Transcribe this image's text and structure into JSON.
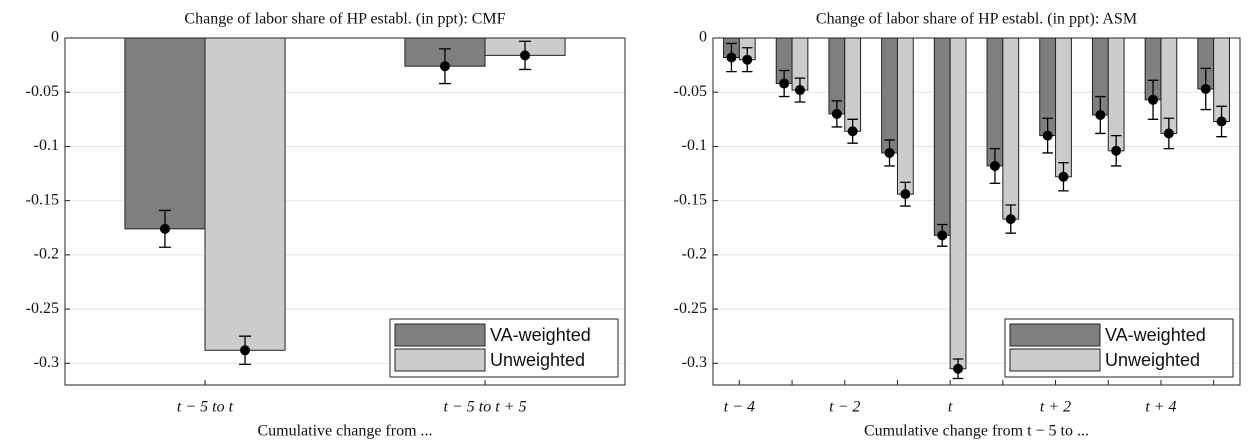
{
  "chart_data": [
    {
      "type": "bar",
      "title": "Change of labor share of HP establ. (in ppt): CMF",
      "x_label": "Cumulative change from ...",
      "categories": [
        "t − 5  to  t",
        "t − 5  to  t + 5"
      ],
      "series": [
        {
          "name": "VA-weighted",
          "color": "#7f7f7f",
          "values": [
            -0.176,
            -0.026
          ],
          "errors": [
            0.017,
            0.016
          ]
        },
        {
          "name": "Unweighted",
          "color": "#cccccc",
          "values": [
            -0.288,
            -0.016
          ],
          "errors": [
            0.013,
            0.013
          ]
        }
      ],
      "ylim": [
        -0.32,
        0
      ],
      "yticks": [
        0,
        -0.05,
        -0.1,
        -0.15,
        -0.2,
        -0.25,
        -0.3
      ],
      "grid": true,
      "legend": "lower right"
    },
    {
      "type": "bar",
      "title": "Change of labor share of HP establ. (in ppt): ASM",
      "x_label": "Cumulative change from t − 5 to ...",
      "categories": [
        "t − 4",
        null,
        "t − 2",
        null,
        "t",
        null,
        "t + 2",
        null,
        "t + 4",
        null
      ],
      "series": [
        {
          "name": "VA-weighted",
          "color": "#7f7f7f",
          "values": [
            -0.018,
            -0.042,
            -0.07,
            -0.106,
            -0.182,
            -0.118,
            -0.09,
            -0.071,
            -0.057,
            -0.047
          ],
          "errors": [
            0.013,
            0.012,
            0.012,
            0.012,
            0.01,
            0.016,
            0.016,
            0.017,
            0.018,
            0.019
          ]
        },
        {
          "name": "Unweighted",
          "color": "#cccccc",
          "values": [
            -0.02,
            -0.048,
            -0.086,
            -0.144,
            -0.305,
            -0.167,
            -0.128,
            -0.104,
            -0.088,
            -0.077
          ],
          "errors": [
            0.011,
            0.011,
            0.011,
            0.011,
            0.009,
            0.013,
            0.013,
            0.014,
            0.014,
            0.014
          ]
        }
      ],
      "ylim": [
        -0.32,
        0
      ],
      "yticks": [
        0,
        -0.05,
        -0.1,
        -0.15,
        -0.2,
        -0.25,
        -0.3
      ],
      "grid": true,
      "legend": "lower right"
    }
  ]
}
